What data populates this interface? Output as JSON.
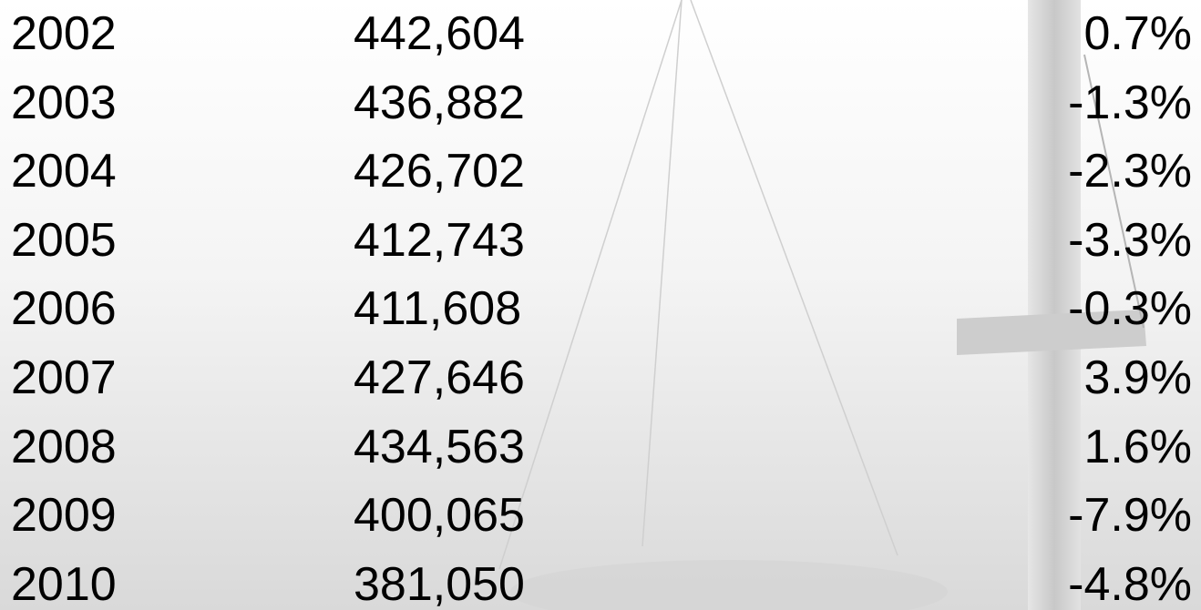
{
  "table": {
    "rows": [
      [
        "2002",
        "442,604",
        "0.7%"
      ],
      [
        "2003",
        "436,882",
        "-1.3%"
      ],
      [
        "2004",
        "426,702",
        "-2.3%"
      ],
      [
        "2005",
        "412,743",
        "-3.3%"
      ],
      [
        "2006",
        "411,608",
        "-0.3%"
      ],
      [
        "2007",
        "427,646",
        "3.9%"
      ],
      [
        "2008",
        "434,563",
        "1.6%"
      ],
      [
        "2009",
        "400,065",
        "-7.9%"
      ],
      [
        "2010",
        "381,050",
        "-4.8%"
      ]
    ]
  }
}
